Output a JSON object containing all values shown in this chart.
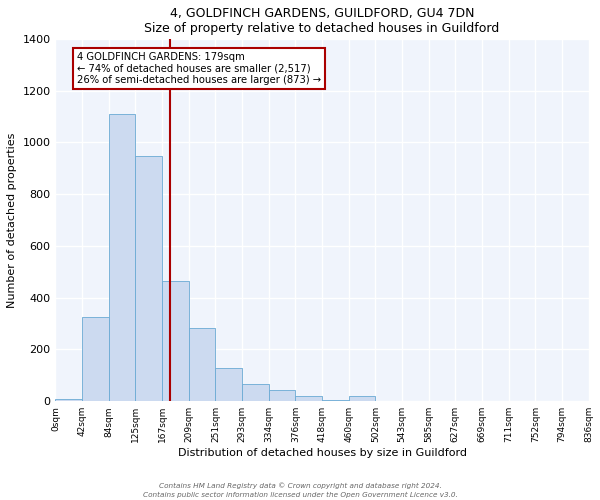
{
  "title": "4, GOLDFINCH GARDENS, GUILDFORD, GU4 7DN",
  "subtitle": "Size of property relative to detached houses in Guildford",
  "xlabel": "Distribution of detached houses by size in Guildford",
  "ylabel": "Number of detached properties",
  "bin_labels": [
    "0sqm",
    "42sqm",
    "84sqm",
    "125sqm",
    "167sqm",
    "209sqm",
    "251sqm",
    "293sqm",
    "334sqm",
    "376sqm",
    "418sqm",
    "460sqm",
    "502sqm",
    "543sqm",
    "585sqm",
    "627sqm",
    "669sqm",
    "711sqm",
    "752sqm",
    "794sqm",
    "836sqm"
  ],
  "bar_heights": [
    10,
    327,
    1108,
    947,
    464,
    282,
    127,
    68,
    45,
    20,
    5,
    22,
    1,
    0,
    0,
    0,
    0,
    0,
    0,
    0
  ],
  "bar_color": "#ccdaf0",
  "bar_edge_color": "#6aaad4",
  "vline_color": "#aa0000",
  "annotation_title": "4 GOLDFINCH GARDENS: 179sqm",
  "annotation_line1": "← 74% of detached houses are smaller (2,517)",
  "annotation_line2": "26% of semi-detached houses are larger (873) →",
  "annotation_box_edge": "#aa0000",
  "ylim": [
    0,
    1400
  ],
  "yticks": [
    0,
    200,
    400,
    600,
    800,
    1000,
    1200,
    1400
  ],
  "footer1": "Contains HM Land Registry data © Crown copyright and database right 2024.",
  "footer2": "Contains public sector information licensed under the Open Government Licence v3.0.",
  "bg_color": "#f0f4fc"
}
